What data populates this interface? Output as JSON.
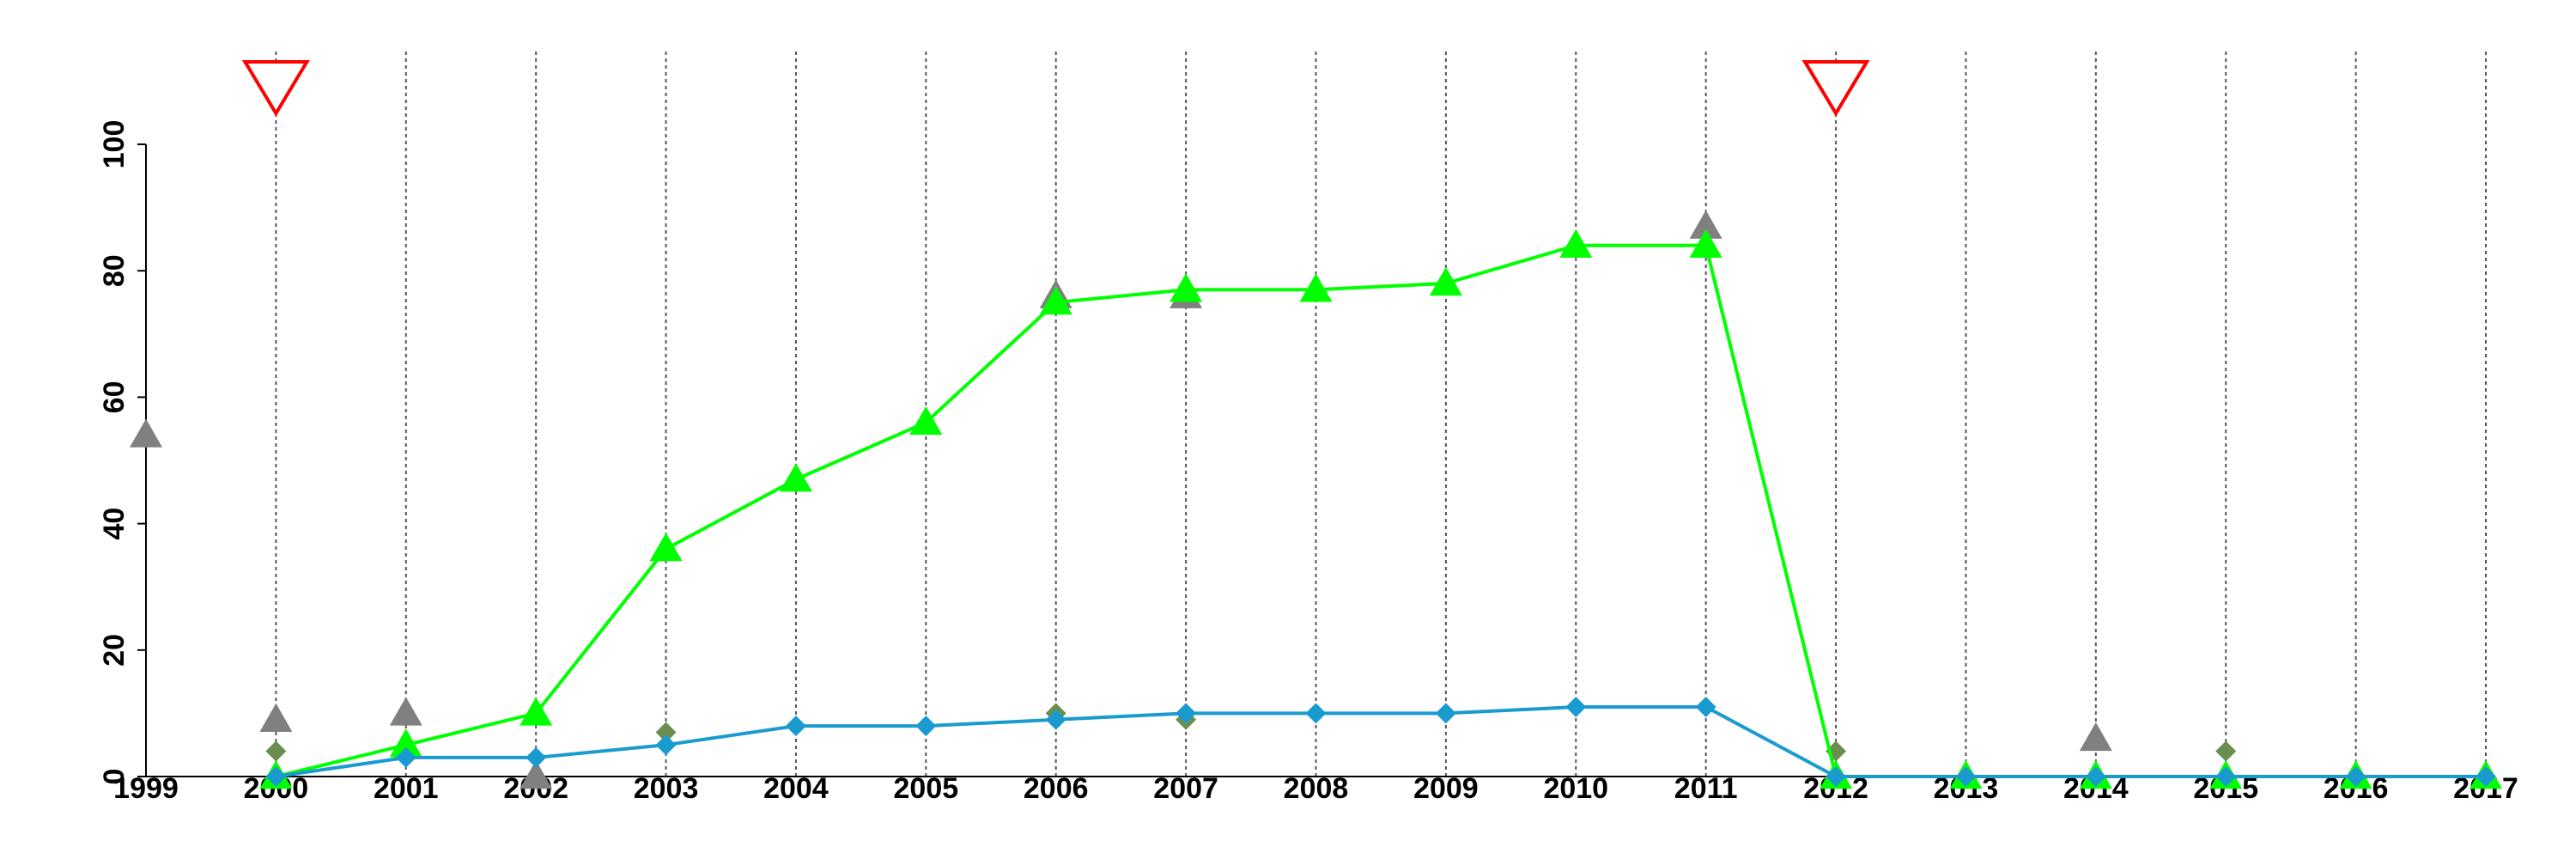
{
  "chart_data": {
    "type": "line",
    "x": [
      2000,
      2001,
      2002,
      2003,
      2004,
      2005,
      2006,
      2007,
      2008,
      2009,
      2010,
      2011,
      2012,
      2013,
      2014,
      2015,
      2016,
      2017
    ],
    "series": [
      {
        "color": "#00ff00",
        "marker": "triangle",
        "connect": true,
        "values": [
          0,
          5,
          10,
          36,
          47,
          56,
          75,
          77,
          77,
          78,
          84,
          84,
          0,
          0,
          0,
          0,
          0,
          0
        ]
      },
      {
        "color": "#1a9bd0",
        "marker": "diamond",
        "connect": true,
        "values": [
          0,
          3,
          3,
          5,
          8,
          8,
          9,
          10,
          10,
          10,
          11,
          11,
          0,
          0,
          0,
          0,
          0,
          0
        ]
      },
      {
        "color": "#808080",
        "marker": "triangle",
        "connect": false,
        "x": [
          1999,
          2000,
          2001,
          2002,
          2006,
          2007,
          2011,
          2014
        ],
        "values": [
          54,
          9,
          10,
          0,
          76,
          76,
          87,
          6
        ]
      },
      {
        "color": "#6b8e50",
        "marker": "diamond",
        "connect": false,
        "x": [
          2000,
          2003,
          2006,
          2007,
          2012,
          2015
        ],
        "values": [
          4,
          7,
          10,
          9,
          4,
          4
        ]
      }
    ],
    "events": [
      2000,
      2012
    ],
    "event_color": "#ff0000",
    "xlim": [
      1999,
      2017
    ],
    "xticks": [
      1999,
      2000,
      2001,
      2002,
      2003,
      2004,
      2005,
      2006,
      2007,
      2008,
      2009,
      2010,
      2011,
      2012,
      2013,
      2014,
      2015,
      2016,
      2017
    ],
    "ylim": [
      0,
      100
    ],
    "yticks": [
      0,
      20,
      40,
      60,
      80,
      100
    ],
    "grid": true
  }
}
